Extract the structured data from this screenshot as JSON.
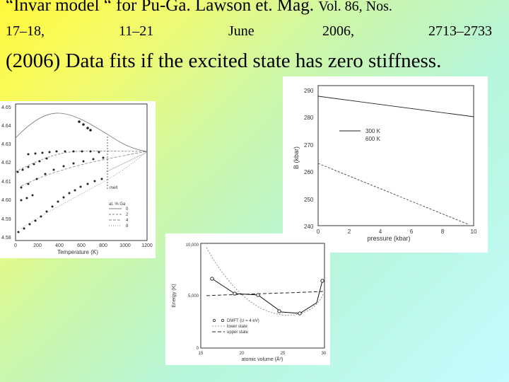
{
  "slide": {
    "title_main": "“Invar model “ for Pu-Ga. Lawson et. Mag.",
    "title_vol": "Vol. 86, Nos.",
    "citation": [
      "17–18,",
      "11–21",
      "June",
      "2006,",
      "2713–2733"
    ],
    "subtitle": "(2006) Data fits  if the excited state has zero stiffness."
  },
  "fig_left": {
    "y_ticks": [
      "4.65",
      "4.64",
      "4.63",
      "4.62",
      "4.61",
      "4.60",
      "4.59",
      "4.58"
    ],
    "x_ticks": [
      "0",
      "200",
      "400",
      "600",
      "800",
      "1000",
      "1200"
    ],
    "xlabel": "Temperature (K)",
    "melt_label": "melt",
    "legend_title": "at. % Ga",
    "legend_items": [
      "0",
      "2",
      "4",
      "8"
    ]
  },
  "fig_right": {
    "y_ticks": [
      "290",
      "280",
      "270",
      "260",
      "250",
      "240"
    ],
    "x_ticks": [
      "0",
      "2",
      "4",
      "6",
      "8",
      "10"
    ],
    "xlabel": "pressure (kbar)",
    "ylabel": "B (kbar)",
    "legend": [
      "300 K",
      "600 K"
    ]
  },
  "fig_bottom": {
    "y_ticks": [
      "10,000",
      "5,000",
      "0"
    ],
    "x_ticks": [
      "15",
      "20",
      "25",
      "30"
    ],
    "xlabel": "atomic volume (Å³)",
    "ylabel": "Energy (K)",
    "legend": [
      "DMFT (U = 4 eV)",
      "lower state",
      "upper state"
    ]
  }
}
